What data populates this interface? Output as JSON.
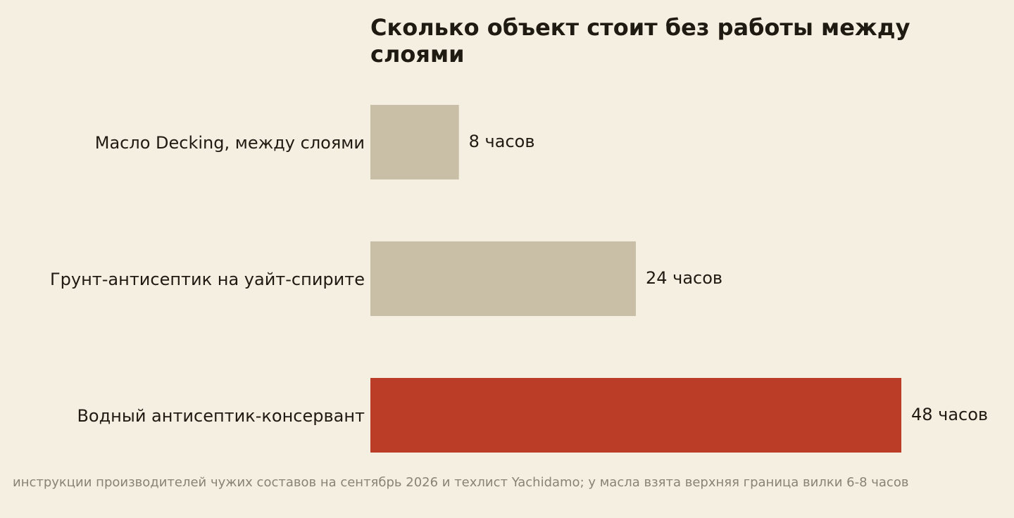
{
  "chart_data": {
    "type": "bar",
    "orientation": "horizontal",
    "title": "Сколько объект стоит без работы между слоями",
    "categories": [
      "Масло Decking, между слоями",
      "Грунт-антисептик на уайт-спирите",
      "Водный антисептик-консервант"
    ],
    "values": [
      8,
      24,
      48
    ],
    "value_labels": [
      "8 часов",
      "24 часов",
      "48 часов"
    ],
    "unit": "часов",
    "xlim": [
      0,
      48
    ],
    "grid": false,
    "bar_colors": [
      "#c9bfa7",
      "#c9bfa7",
      "#bc3d27"
    ],
    "source": "инструкции производителей чужих составов на сентябрь 2026 и техлист Yachidamo; у масла взята верхняя граница вилки 6-8 часов"
  },
  "colors": {
    "background": "#f5efe2",
    "muted_bar": "#c9bfa7",
    "highlight_bar": "#bc3d27",
    "text": "#1f1a12",
    "source_text": "#8a8274"
  }
}
